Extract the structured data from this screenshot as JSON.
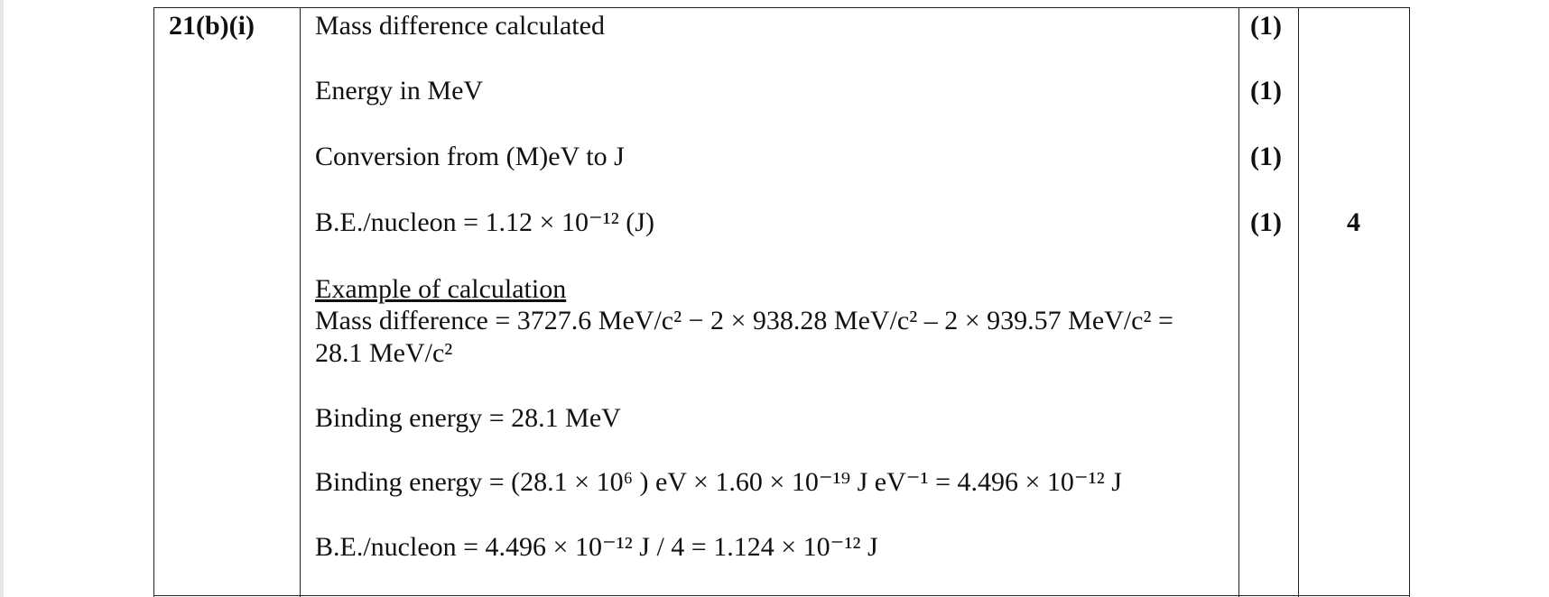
{
  "row": {
    "question": "21(b)(i)",
    "marking_points": [
      {
        "text": "Mass difference calculated",
        "mark": "(1)"
      },
      {
        "text": "Energy in MeV",
        "mark": "(1)"
      },
      {
        "text": "Conversion from (M)eV to J",
        "mark": "(1)"
      },
      {
        "text": "B.E./nucleon = 1.12 × 10⁻¹² (J)",
        "mark": "(1)"
      }
    ],
    "total": "4",
    "example": {
      "heading": "Example of calculation",
      "lines": [
        "Mass difference = 3727.6 MeV/c² − 2 × 938.28 MeV/c² – 2 × 939.57 MeV/c² =",
        "28.1 MeV/c²",
        "Binding energy = 28.1 MeV",
        "Binding energy = (28.1 × 10⁶ ) eV × 1.60 × 10⁻¹⁹ J eV⁻¹ = 4.496 × 10⁻¹² J",
        "B.E./nucleon = 4.496 × 10⁻¹² J / 4 = 1.124 × 10⁻¹² J"
      ]
    }
  }
}
